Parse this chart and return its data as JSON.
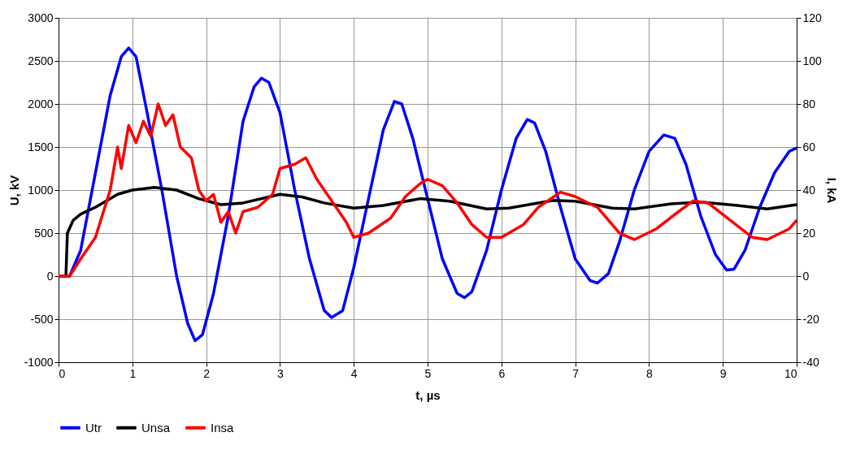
{
  "chart_data": {
    "type": "line",
    "xlabel": "t, µs",
    "ylabel": "U, kV",
    "y2label": "I, kA",
    "xlim": [
      0,
      10
    ],
    "xticks": [
      0,
      1,
      2,
      3,
      4,
      5,
      6,
      7,
      8,
      9,
      10
    ],
    "ylim": [
      -1000,
      3000
    ],
    "yticks": [
      -1000,
      -500,
      0,
      500,
      1000,
      1500,
      2000,
      2500,
      3000
    ],
    "y2lim": [
      -40,
      120
    ],
    "y2ticks": [
      -40,
      -20,
      0,
      20,
      40,
      60,
      80,
      100,
      120
    ],
    "grid": true,
    "legend": "bottom",
    "marker": "none",
    "line_style": "solid",
    "series": [
      {
        "name": "Utr",
        "color": "#0000ff",
        "x": [
          0,
          0.15,
          0.3,
          0.5,
          0.7,
          0.85,
          0.95,
          1.05,
          1.2,
          1.4,
          1.6,
          1.75,
          1.85,
          1.95,
          2.1,
          2.3,
          2.5,
          2.65,
          2.75,
          2.85,
          3.0,
          3.2,
          3.4,
          3.6,
          3.7,
          3.85,
          4.0,
          4.2,
          4.4,
          4.55,
          4.65,
          4.8,
          5.0,
          5.2,
          5.4,
          5.5,
          5.6,
          5.8,
          6.0,
          6.2,
          6.35,
          6.45,
          6.6,
          6.8,
          7.0,
          7.2,
          7.3,
          7.45,
          7.6,
          7.8,
          8.0,
          8.2,
          8.35,
          8.5,
          8.7,
          8.9,
          9.05,
          9.15,
          9.3,
          9.5,
          9.7,
          9.9,
          10
        ],
        "values": [
          0,
          0,
          300,
          1200,
          2100,
          2550,
          2650,
          2550,
          1900,
          1000,
          0,
          -550,
          -750,
          -680,
          -200,
          700,
          1800,
          2200,
          2300,
          2250,
          1900,
          1000,
          200,
          -400,
          -480,
          -400,
          100,
          900,
          1700,
          2030,
          2000,
          1600,
          900,
          200,
          -200,
          -250,
          -180,
          300,
          1000,
          1600,
          1820,
          1780,
          1450,
          800,
          200,
          -50,
          -80,
          30,
          400,
          1000,
          1450,
          1640,
          1600,
          1300,
          700,
          250,
          70,
          80,
          300,
          800,
          1200,
          1450,
          1490
        ]
      },
      {
        "name": "Unsa",
        "color": "#000000",
        "x": [
          0,
          0.1,
          0.12,
          0.2,
          0.3,
          0.5,
          0.8,
          1.0,
          1.3,
          1.6,
          1.9,
          2.2,
          2.5,
          3.0,
          3.3,
          3.6,
          4.0,
          4.4,
          4.9,
          5.3,
          5.8,
          6.1,
          6.7,
          7.0,
          7.5,
          7.8,
          8.3,
          8.7,
          9.2,
          9.6,
          10
        ],
        "values": [
          0,
          0,
          500,
          650,
          720,
          800,
          950,
          1000,
          1030,
          1000,
          900,
          830,
          850,
          950,
          920,
          850,
          790,
          820,
          900,
          870,
          780,
          790,
          880,
          870,
          790,
          780,
          840,
          860,
          820,
          780,
          830
        ]
      },
      {
        "name": "Insa",
        "color": "#ff0000",
        "axis": "y2",
        "x": [
          0,
          0.15,
          0.3,
          0.5,
          0.7,
          0.8,
          0.85,
          0.95,
          1.05,
          1.15,
          1.25,
          1.35,
          1.45,
          1.55,
          1.65,
          1.8,
          1.9,
          2.0,
          2.1,
          2.2,
          2.3,
          2.4,
          2.5,
          2.7,
          2.9,
          3.0,
          3.2,
          3.35,
          3.5,
          3.7,
          3.9,
          4.0,
          4.2,
          4.5,
          4.7,
          4.9,
          5.0,
          5.2,
          5.4,
          5.6,
          5.8,
          6.0,
          6.3,
          6.5,
          6.8,
          7.0,
          7.3,
          7.6,
          7.8,
          8.1,
          8.4,
          8.6,
          8.8,
          9.1,
          9.4,
          9.6,
          9.9,
          10
        ],
        "values": [
          0,
          0,
          8,
          18,
          40,
          60,
          50,
          70,
          62,
          72,
          65,
          80,
          70,
          75,
          60,
          55,
          40,
          35,
          38,
          25,
          30,
          20,
          30,
          32,
          38,
          50,
          52,
          55,
          45,
          35,
          25,
          18,
          20,
          27,
          37,
          43,
          45,
          42,
          34,
          24,
          18,
          18,
          24,
          32,
          39,
          37,
          32,
          20,
          17,
          22,
          30,
          35,
          34,
          26,
          18,
          17,
          22,
          26
        ]
      }
    ]
  }
}
